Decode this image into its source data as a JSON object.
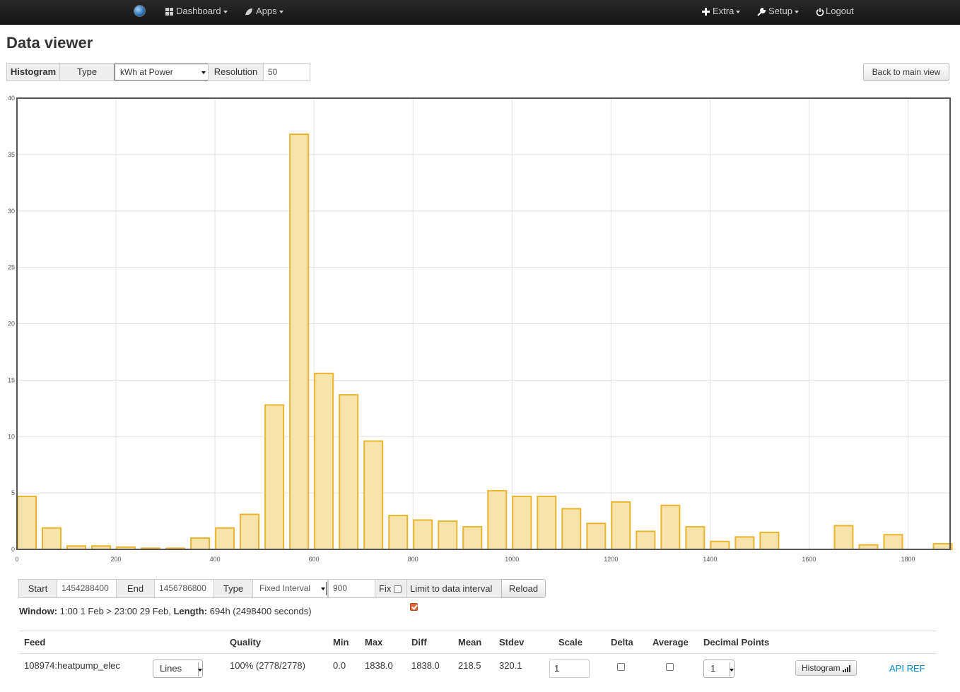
{
  "nav": {
    "dashboard": "Dashboard",
    "apps": "Apps",
    "extra": "Extra",
    "setup": "Setup",
    "logout": "Logout"
  },
  "page": {
    "title": "Data viewer"
  },
  "histogram_toolbar": {
    "label": "Histogram",
    "type_label": "Type",
    "type_value": "kWh at Power",
    "resolution_label": "Resolution",
    "resolution_value": "50",
    "back_button": "Back to main view"
  },
  "chart_data": {
    "type": "bar",
    "bar_width": 40,
    "x": [
      0,
      50,
      100,
      150,
      200,
      250,
      300,
      350,
      400,
      450,
      500,
      550,
      600,
      650,
      700,
      750,
      800,
      850,
      900,
      950,
      1000,
      1050,
      1100,
      1150,
      1200,
      1250,
      1300,
      1350,
      1400,
      1450,
      1500,
      1550,
      1600,
      1650,
      1700,
      1750,
      1800,
      1850
    ],
    "values": [
      4.7,
      1.9,
      0.3,
      0.3,
      0.2,
      0.1,
      0.1,
      1.0,
      1.9,
      3.1,
      12.8,
      36.8,
      15.6,
      13.7,
      9.6,
      3.0,
      2.6,
      2.5,
      2.0,
      5.2,
      4.7,
      4.7,
      3.6,
      2.3,
      4.2,
      1.6,
      3.9,
      2.0,
      0.7,
      1.1,
      1.5,
      0,
      0,
      2.1,
      0.4,
      1.3,
      0,
      0.5
    ],
    "xlim": [
      0,
      1885
    ],
    "ylim": [
      0,
      40
    ],
    "xticks": [
      "0",
      "200",
      "400",
      "600",
      "800",
      "1000",
      "1200",
      "1400",
      "1600",
      "1800"
    ],
    "yticks": [
      "0",
      "5",
      "10",
      "15",
      "20",
      "25",
      "30",
      "35",
      "40"
    ],
    "grid": true,
    "title": "",
    "xlabel": "",
    "ylabel": "",
    "bar_fill": "#f7e3ab",
    "bar_stroke": "#e9b52e"
  },
  "controls": {
    "start_label": "Start",
    "start_value": "1454288400",
    "end_label": "End",
    "end_value": "1456786800",
    "type_label": "Type",
    "type_value": "Fixed Interval",
    "interval_value": "900",
    "fix_label": "Fix",
    "limit_label": "Limit to data interval",
    "reload_button": "Reload"
  },
  "window": {
    "prefix": "Window:",
    "range": "1:00 1 Feb > 23:00 29 Feb,",
    "length_label": "Length:",
    "length_value": "694h (2498400 seconds)"
  },
  "feed_table": {
    "headers": {
      "feed": "Feed",
      "quality": "Quality",
      "min": "Min",
      "max": "Max",
      "diff": "Diff",
      "mean": "Mean",
      "stdev": "Stdev",
      "scale": "Scale",
      "delta": "Delta",
      "average": "Average",
      "decimal_points": "Decimal Points"
    },
    "row": {
      "feed": "108974:heatpump_elec",
      "plot_type": "Lines",
      "quality": "100% (2778/2778)",
      "min": "0.0",
      "max": "1838.0",
      "diff": "1838.0",
      "mean": "218.5",
      "stdev": "320.1",
      "scale": "1",
      "decimal_points": "1",
      "histogram_button": "Histogram",
      "api_ref": "API REF"
    }
  }
}
